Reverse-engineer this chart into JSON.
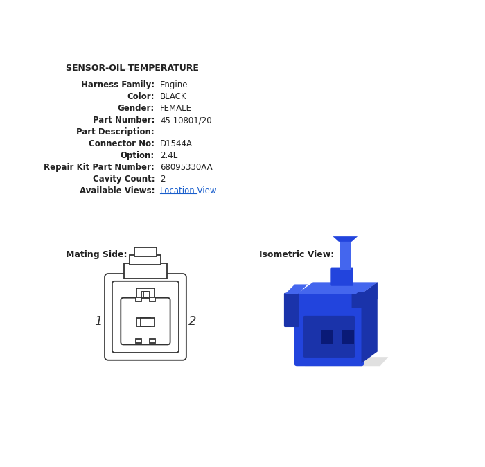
{
  "title": "SENSOR-OIL TEMPERATURE",
  "bg_color": "#ffffff",
  "title_color": "#222222",
  "title_fontsize": 9,
  "fields": [
    [
      "Harness Family:",
      "Engine"
    ],
    [
      "Color:",
      "BLACK"
    ],
    [
      "Gender:",
      "FEMALE"
    ],
    [
      "Part Number:",
      "45.10801/20"
    ],
    [
      "Part Description:",
      ""
    ],
    [
      "Connector No:",
      "D1544A"
    ],
    [
      "Option:",
      "2.4L"
    ],
    [
      "Repair Kit Part Number:",
      "68095330AA"
    ],
    [
      "Cavity Count:",
      "2"
    ],
    [
      "Available Views:",
      "Location View"
    ]
  ],
  "mating_side_label": "Mating Side:",
  "isometric_view_label": "Isometric View:",
  "label_1": "1",
  "label_2": "2",
  "outline_color": "#333333",
  "blue_main": "#2244dd",
  "blue_dark": "#1a33aa",
  "blue_light": "#4466ee",
  "blue_very_dark": "#0a1a77"
}
